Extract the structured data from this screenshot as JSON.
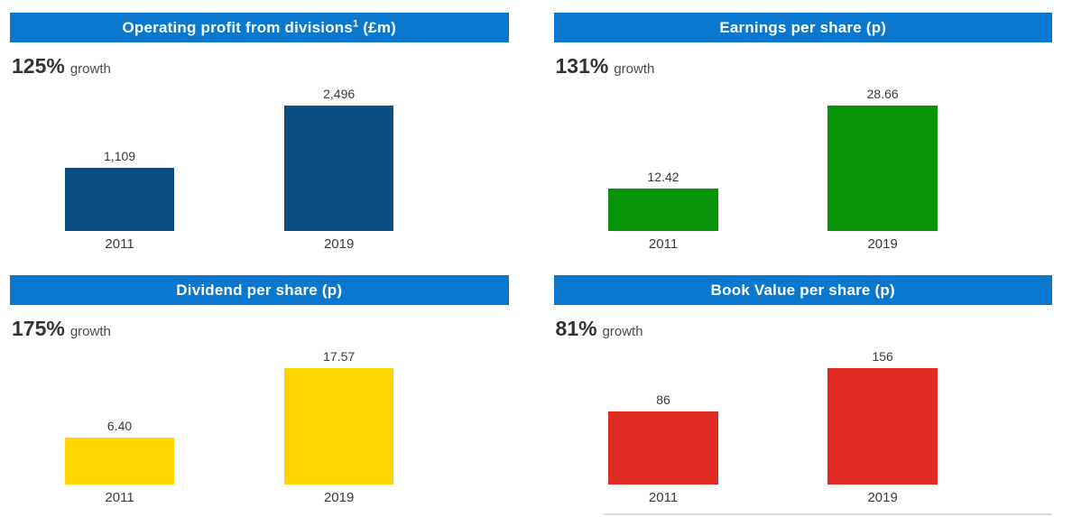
{
  "theme": {
    "header_blue": "#0b78d0",
    "text_dark": "#3a3a3a",
    "rule_gray": "#d9d9d9"
  },
  "chart_data": [
    {
      "type": "bar",
      "title": "Operating profit from divisions¹ (£m)",
      "title_parts": {
        "main": "Operating profit from divisions",
        "sup": "1",
        "tail": " (£m)"
      },
      "annotation": {
        "growth_value": "125%",
        "growth_label": "growth"
      },
      "categories": [
        "2011",
        "2019"
      ],
      "values": [
        1109,
        2496
      ],
      "value_labels": [
        "1,109",
        "2,496"
      ],
      "ylim": [
        0,
        2550
      ],
      "bar_color": "#0d4e83",
      "grid": false,
      "legend": "none"
    },
    {
      "type": "bar",
      "title": "Earnings per share (p)",
      "title_parts": {
        "main": "Earnings per share (p)",
        "sup": "",
        "tail": ""
      },
      "annotation": {
        "growth_value": "131%",
        "growth_label": "growth"
      },
      "categories": [
        "2011",
        "2019"
      ],
      "values": [
        12.42,
        28.66
      ],
      "value_labels": [
        "12.42",
        "28.66"
      ],
      "ylim": [
        5,
        30
      ],
      "bar_color": "#089408",
      "grid": false,
      "legend": "none"
    },
    {
      "type": "bar",
      "title": "Dividend per share (p)",
      "title_parts": {
        "main": "Dividend per share (p)",
        "sup": "",
        "tail": ""
      },
      "annotation": {
        "growth_value": "175%",
        "growth_label": "growth"
      },
      "categories": [
        "2011",
        "2019"
      ],
      "values": [
        6.4,
        17.57
      ],
      "value_labels": [
        "6.40",
        "17.57"
      ],
      "ylim": [
        0,
        18.3
      ],
      "bar_color": "#ffd401",
      "grid": false,
      "legend": "none"
    },
    {
      "type": "bar",
      "title": "Book Value per share (p)",
      "title_parts": {
        "main": "Book Value per share (p)",
        "sup": "",
        "tail": ""
      },
      "annotation": {
        "growth_value": "81%",
        "growth_label": "growth"
      },
      "categories": [
        "2011",
        "2019"
      ],
      "values": [
        86,
        156
      ],
      "value_labels": [
        "86",
        "156"
      ],
      "ylim": [
        0,
        160
      ],
      "bar_color": "#e02b22",
      "grid": false,
      "legend": "none",
      "has_bottom_rule": true
    }
  ]
}
